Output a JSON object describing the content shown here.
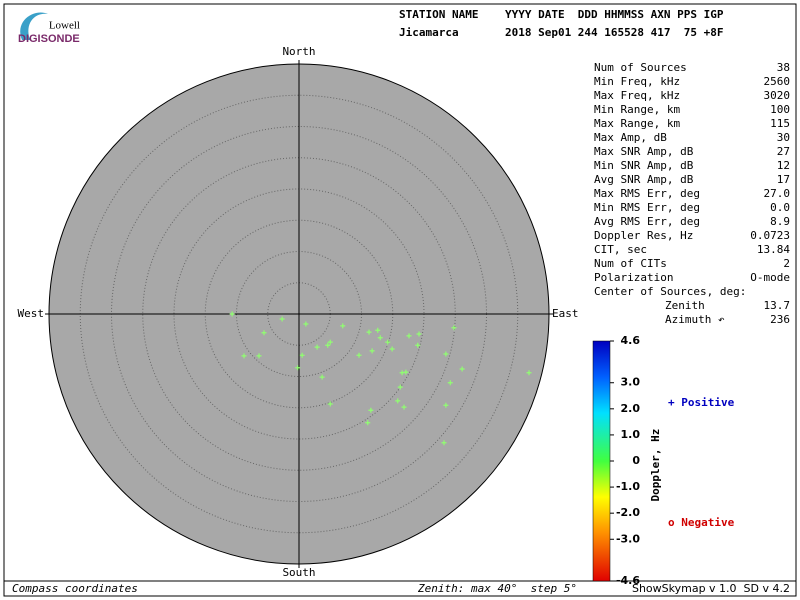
{
  "logo": {
    "line1": "Lowell",
    "line2": "DIGISONDE"
  },
  "header": {
    "labels": "STATION NAME    YYYY DATE  DDD HHMMSS AXN PPS IGP",
    "values": "Jicamarca       2018 Sep01 244 165528 417  75 +8F"
  },
  "chart_data": {
    "type": "scatter",
    "compass": {
      "north": "North",
      "east": "East",
      "south": "South",
      "west": "West"
    },
    "rlim": [
      0,
      40
    ],
    "rticks": [
      5,
      10,
      15,
      20,
      25,
      30,
      35
    ],
    "color": "#90ff70",
    "x": [
      -10.7,
      -5.6,
      -2.7,
      1.1,
      -8.8,
      -6.4,
      0.5,
      -0.2,
      2.9,
      4.6,
      5.0,
      7.0,
      3.7,
      9.6,
      11.2,
      11.7,
      13.0,
      14.2,
      14.9,
      12.6,
      17.6,
      19.2,
      19.0,
      24.8,
      23.5,
      26.1,
      16.5,
      17.1,
      16.2,
      24.2,
      5.0,
      11.5,
      15.8,
      16.8,
      23.5,
      11.0,
      23.2,
      36.8
    ],
    "y": [
      0,
      -3.0,
      -0.8,
      -1.6,
      -6.7,
      -6.7,
      -6.6,
      -8.6,
      -5.3,
      -5.0,
      -4.5,
      -1.9,
      -10.1,
      -6.6,
      -2.9,
      -5.9,
      -3.8,
      -4.5,
      -5.6,
      -2.6,
      -3.5,
      -3.2,
      -5.0,
      -2.2,
      -6.4,
      -8.8,
      -9.4,
      -9.3,
      -11.7,
      -11.0,
      -14.4,
      -15.4,
      -13.9,
      -14.9,
      -14.6,
      -17.4,
      -20.6,
      -9.4
    ]
  },
  "stats": {
    "rows": [
      [
        "Num of Sources",
        "38"
      ],
      [
        "Min Freq, kHz",
        "2560"
      ],
      [
        "Max Freq, kHz",
        "3020"
      ],
      [
        "Min Range, km",
        "100"
      ],
      [
        "Max Range, km",
        "115"
      ],
      [
        "Max Amp, dB",
        "30"
      ],
      [
        "Max SNR Amp, dB",
        "27"
      ],
      [
        "Min SNR Amp, dB",
        "12"
      ],
      [
        "Avg SNR Amp, dB",
        "17"
      ],
      [
        "Max RMS Err, deg",
        "27.0"
      ],
      [
        "Min RMS Err, deg",
        "0.0"
      ],
      [
        "Avg RMS Err, deg",
        "8.9"
      ],
      [
        "Doppler Res, Hz",
        "0.0723"
      ],
      [
        "CIT, sec",
        "13.84"
      ],
      [
        "Num of CITs",
        "2"
      ],
      [
        "Polarization",
        "O-mode"
      ]
    ],
    "center_title": "Center of Sources, deg:",
    "center_rows": [
      [
        "Zenith",
        "13.7"
      ],
      [
        "Azimuth ↶",
        "236"
      ]
    ]
  },
  "colorbar": {
    "label": "Doppler, Hz",
    "lim": [
      -4.6,
      4.6
    ],
    "ticks": [
      4.6,
      {
        "value": 3,
        "label": "3.0"
      },
      {
        "value": 2,
        "label": "2.0"
      },
      {
        "value": 1,
        "label": "1.0"
      },
      0,
      {
        "value": -1,
        "label": "-1.0"
      },
      {
        "value": -2,
        "label": "-2.0"
      },
      {
        "value": -3,
        "label": "-3.0"
      },
      -4.6
    ],
    "positive": "+ Positive",
    "negative": "o Negative"
  },
  "footer": {
    "left": "Compass coordinates",
    "middle": "Zenith: max 40°  step 5°",
    "right": "ShowSkymap v 1.0  SD v 4.2"
  }
}
